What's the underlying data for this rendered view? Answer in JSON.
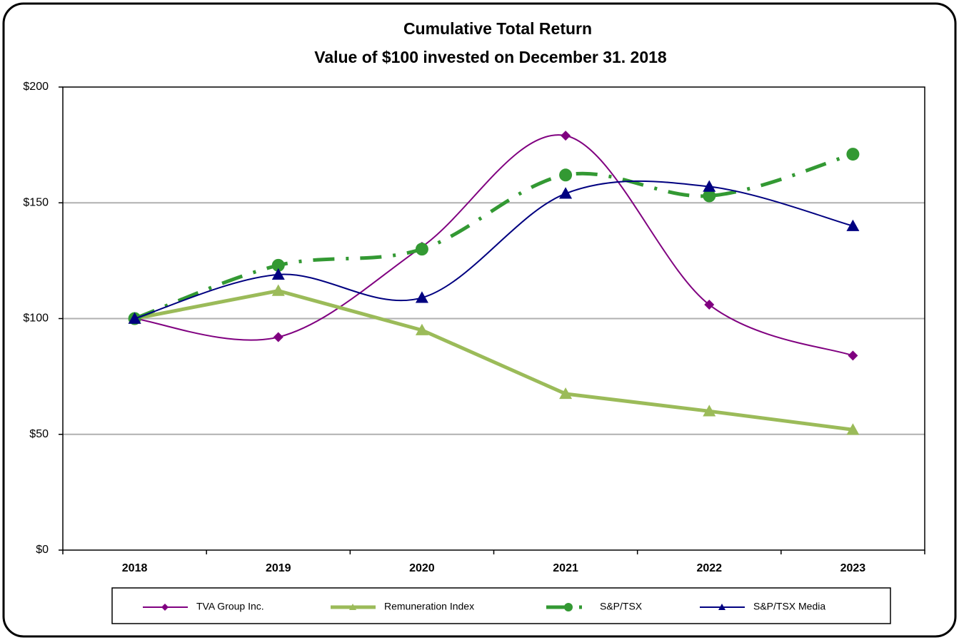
{
  "chart_data": {
    "type": "line",
    "title": "Cumulative Total Return",
    "subtitle": "Value of $100 invested on December 31. 2018",
    "categories": [
      "2018",
      "2019",
      "2020",
      "2021",
      "2022",
      "2023"
    ],
    "series": [
      {
        "name": "TVA Group Inc.",
        "color": "#800080",
        "values": [
          100,
          92,
          131,
          179,
          106,
          84
        ],
        "marker": "diamond",
        "smooth": true,
        "width": 2
      },
      {
        "name": "Remuneration Index",
        "color": "#9bbb59",
        "values": [
          100,
          112,
          95,
          67.5,
          60,
          52
        ],
        "marker": "triangle",
        "smooth": false,
        "width": 5
      },
      {
        "name": "S&P/TSX",
        "color": "#339933",
        "values": [
          100,
          123,
          130,
          162,
          153,
          171
        ],
        "marker": "circle",
        "smooth": true,
        "width": 5,
        "dash": "dashdot"
      },
      {
        "name": "S&P/TSX Media",
        "color": "#000080",
        "values": [
          100,
          119,
          109,
          154,
          157,
          140
        ],
        "marker": "triangle",
        "smooth": true,
        "width": 2
      }
    ],
    "ylim": [
      0,
      200
    ],
    "yticks": [
      {
        "value": 0,
        "label": "$0"
      },
      {
        "value": 50,
        "label": "$50"
      },
      {
        "value": 100,
        "label": "$100"
      },
      {
        "value": 150,
        "label": "$150"
      },
      {
        "value": 200,
        "label": "$200"
      }
    ],
    "grid": true,
    "legend": "bottom"
  }
}
